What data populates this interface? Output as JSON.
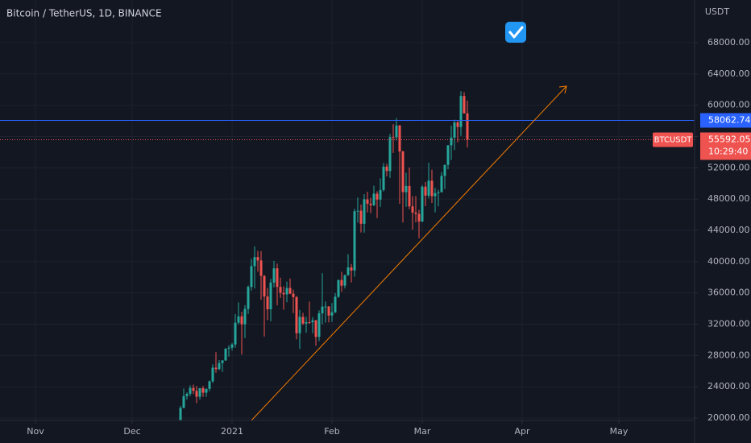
{
  "chart_data": {
    "type": "candlestick",
    "title": "Bitcoin / TetherUS, 1D, BINANCE",
    "currency": "USDT",
    "symbol": "BTCUSDT",
    "countdown": "10:29:40",
    "up_color": "#26a69a",
    "down_color": "#ef5350",
    "grid": true,
    "xlim": [
      "2020-10-21",
      "2021-05-24"
    ],
    "xticks": [
      {
        "value": "2020-11-01",
        "label": "Nov"
      },
      {
        "value": "2020-12-01",
        "label": "Dec"
      },
      {
        "value": "2021-01-01",
        "label": "2021"
      },
      {
        "value": "2021-02-01",
        "label": "Feb"
      },
      {
        "value": "2021-03-01",
        "label": "Mar"
      },
      {
        "value": "2021-04-01",
        "label": "Apr"
      },
      {
        "value": "2021-05-01",
        "label": "May"
      }
    ],
    "ylim": [
      19691,
      73461
    ],
    "yticks": [
      {
        "value": 20000,
        "label": "20000.00"
      },
      {
        "value": 24000,
        "label": "24000.00"
      },
      {
        "value": 28000,
        "label": "28000.00"
      },
      {
        "value": 32000,
        "label": "32000.00"
      },
      {
        "value": 36000,
        "label": "36000.00"
      },
      {
        "value": 40000,
        "label": "40000.00"
      },
      {
        "value": 44000,
        "label": "44000.00"
      },
      {
        "value": 48000,
        "label": "48000.00"
      },
      {
        "value": 52000,
        "label": "52000.00"
      },
      {
        "value": 56000,
        "label": "56000.00"
      },
      {
        "value": 60000,
        "label": "60000.00"
      },
      {
        "value": 64000,
        "label": "64000.00"
      },
      {
        "value": 68000,
        "label": "68000.00"
      }
    ],
    "horizontal_line": {
      "value": 58062.74,
      "color": "#2962ff"
    },
    "x": [
      "2020-12-16",
      "2020-12-17",
      "2020-12-18",
      "2020-12-19",
      "2020-12-20",
      "2020-12-21",
      "2020-12-22",
      "2020-12-23",
      "2020-12-24",
      "2020-12-25",
      "2020-12-26",
      "2020-12-27",
      "2020-12-28",
      "2020-12-29",
      "2020-12-30",
      "2020-12-31",
      "2021-01-01",
      "2021-01-02",
      "2021-01-03",
      "2021-01-04",
      "2021-01-05",
      "2021-01-06",
      "2021-01-07",
      "2021-01-08",
      "2021-01-09",
      "2021-01-10",
      "2021-01-11",
      "2021-01-12",
      "2021-01-13",
      "2021-01-14",
      "2021-01-15",
      "2021-01-16",
      "2021-01-17",
      "2021-01-18",
      "2021-01-19",
      "2021-01-20",
      "2021-01-21",
      "2021-01-22",
      "2021-01-23",
      "2021-01-24",
      "2021-01-25",
      "2021-01-26",
      "2021-01-27",
      "2021-01-28",
      "2021-01-29",
      "2021-01-30",
      "2021-01-31",
      "2021-02-01",
      "2021-02-02",
      "2021-02-03",
      "2021-02-04",
      "2021-02-05",
      "2021-02-06",
      "2021-02-07",
      "2021-02-08",
      "2021-02-09",
      "2021-02-10",
      "2021-02-11",
      "2021-02-12",
      "2021-02-13",
      "2021-02-14",
      "2021-02-15",
      "2021-02-16",
      "2021-02-17",
      "2021-02-18",
      "2021-02-19",
      "2021-02-20",
      "2021-02-21",
      "2021-02-22",
      "2021-02-23",
      "2021-02-24",
      "2021-02-25",
      "2021-02-26",
      "2021-02-27",
      "2021-02-28",
      "2021-03-01",
      "2021-03-02",
      "2021-03-03",
      "2021-03-04",
      "2021-03-05",
      "2021-03-06",
      "2021-03-07",
      "2021-03-08",
      "2021-03-09",
      "2021-03-10",
      "2021-03-11",
      "2021-03-12",
      "2021-03-13",
      "2021-03-14",
      "2021-03-15"
    ],
    "open": [
      19420,
      21300,
      22800,
      23100,
      23850,
      23480,
      22720,
      23820,
      23240,
      23730,
      24700,
      26440,
      26260,
      27030,
      27370,
      28880,
      28990,
      29410,
      32190,
      33000,
      31990,
      33950,
      36770,
      39430,
      40580,
      40150,
      38190,
      35540,
      33910,
      37320,
      39140,
      36770,
      36010,
      35820,
      36630,
      35900,
      35470,
      30850,
      32940,
      32080,
      32260,
      32250,
      32500,
      30380,
      33390,
      34250,
      34260,
      33110,
      33520,
      35510,
      37660,
      36930,
      38290,
      39260,
      38870,
      46450,
      46510,
      44840,
      47970,
      47410,
      47230,
      48690,
      47940,
      49160,
      52150,
      51590,
      55920,
      55900,
      57410,
      54090,
      48890,
      49680,
      47070,
      46280,
      46110,
      45140,
      49590,
      48440,
      50350,
      48370,
      48760,
      48880,
      50970,
      52380,
      54880,
      55860,
      57800,
      57220,
      61190,
      58970
    ],
    "high": [
      21560,
      23770,
      23280,
      24170,
      24280,
      24100,
      23840,
      24100,
      23790,
      24790,
      26870,
      28420,
      27420,
      27390,
      28900,
      29300,
      29600,
      33300,
      34780,
      33600,
      34440,
      36940,
      40370,
      41950,
      41380,
      41350,
      38260,
      36630,
      37800,
      40100,
      39750,
      37950,
      36850,
      37450,
      37850,
      36420,
      35600,
      33830,
      33460,
      32940,
      34880,
      32920,
      32560,
      33780,
      38530,
      34900,
      34320,
      34710,
      35980,
      37660,
      38700,
      38310,
      40950,
      39700,
      46750,
      48200,
      47310,
      48630,
      48950,
      48160,
      49710,
      49000,
      50640,
      52620,
      52530,
      56330,
      57580,
      58350,
      57500,
      54180,
      51370,
      52040,
      48370,
      48390,
      46640,
      49790,
      50200,
      52640,
      51770,
      49450,
      49200,
      51450,
      52400,
      54900,
      57390,
      58150,
      58060,
      61800,
      61680,
      60600
    ],
    "low": [
      19300,
      21240,
      22350,
      22800,
      23060,
      21910,
      22350,
      22700,
      22700,
      23420,
      24500,
      25800,
      26100,
      25880,
      27320,
      27850,
      28630,
      29000,
      31960,
      28130,
      30220,
      33300,
      36300,
      36570,
      38720,
      35110,
      30420,
      32530,
      32380,
      36700,
      34410,
      35360,
      33850,
      34810,
      35840,
      33400,
      30070,
      28850,
      31900,
      30900,
      32050,
      30830,
      29240,
      29840,
      31990,
      32200,
      32230,
      32300,
      33420,
      35360,
      36160,
      36570,
      38180,
      37350,
      38080,
      45000,
      43730,
      43700,
      46300,
      46200,
      47090,
      45570,
      47000,
      48970,
      50900,
      50710,
      53900,
      55500,
      47400,
      45000,
      47000,
      46700,
      44100,
      45000,
      43000,
      45050,
      47100,
      48080,
      47500,
      46300,
      47070,
      48870,
      49290,
      51820,
      53000,
      54270,
      55250,
      56080,
      58930,
      54600
    ],
    "close": [
      21300,
      22800,
      23100,
      23850,
      23480,
      22720,
      23820,
      23240,
      23730,
      24700,
      26440,
      26260,
      27030,
      27370,
      28880,
      28990,
      29410,
      32190,
      33000,
      31990,
      33950,
      36770,
      39430,
      40580,
      40150,
      38190,
      35540,
      33910,
      37320,
      39140,
      36770,
      36010,
      35820,
      36630,
      35900,
      35470,
      30850,
      32940,
      32080,
      32260,
      32250,
      32500,
      30380,
      33390,
      34250,
      34260,
      33110,
      33520,
      35510,
      37660,
      36930,
      38290,
      39260,
      38870,
      46450,
      46510,
      44840,
      47970,
      47410,
      47230,
      48690,
      47940,
      49160,
      52150,
      51590,
      55920,
      55900,
      57410,
      54090,
      48890,
      49680,
      47070,
      46280,
      46110,
      45140,
      49590,
      48440,
      50350,
      48370,
      48760,
      48880,
      50970,
      52380,
      54880,
      55860,
      57800,
      57220,
      61190,
      58970,
      55592.05
    ]
  }
}
